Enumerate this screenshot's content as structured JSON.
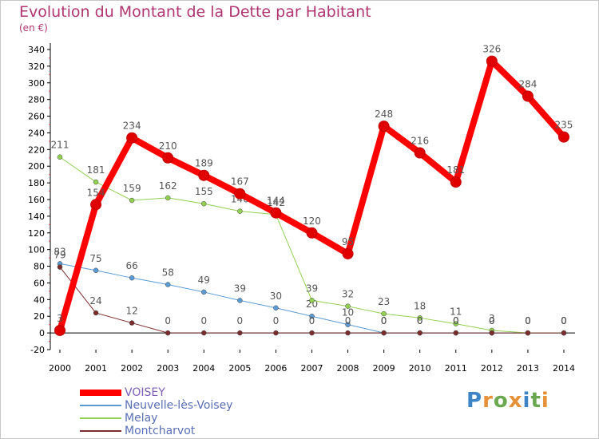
{
  "title": "Evolution du Montant de la Dette par Habitant",
  "unit": "(en €)",
  "logo": {
    "text": "Proxiti",
    "letters": [
      {
        "ch": "P",
        "color": "#3d85c6"
      },
      {
        "ch": "r",
        "color": "#e69138"
      },
      {
        "ch": "o",
        "color": "#6aa84f"
      },
      {
        "ch": "x",
        "color": "#e69138"
      },
      {
        "ch": "i",
        "color": "#3d85c6"
      },
      {
        "ch": "t",
        "color": "#6aa84f"
      },
      {
        "ch": "i",
        "color": "#e69138"
      }
    ]
  },
  "chart_data": {
    "type": "line",
    "title": "Evolution du Montant de la Dette par Habitant",
    "ylabel": "(en €)",
    "xlabel": "",
    "x": [
      "2000",
      "2001",
      "2002",
      "2003",
      "2004",
      "2005",
      "2006",
      "2007",
      "2008",
      "2009",
      "2010",
      "2011",
      "2012",
      "2013",
      "2014"
    ],
    "ylim": [
      -20,
      340
    ],
    "yticks": [
      -20,
      0,
      20,
      40,
      60,
      80,
      100,
      120,
      140,
      160,
      180,
      200,
      220,
      240,
      260,
      280,
      300,
      320,
      340
    ],
    "grid": false,
    "legend_position": "bottom-left",
    "series": [
      {
        "name": "VOISEY",
        "color": "#ff0000",
        "width": 8,
        "values": [
          3,
          154,
          234,
          210,
          189,
          167,
          144,
          120,
          95,
          248,
          216,
          181,
          326,
          284,
          235
        ],
        "labels": [
          "3",
          "154",
          "234",
          "210",
          "189",
          "167",
          "144",
          "120",
          "95",
          "248",
          "216",
          "181",
          "326",
          "284",
          "235"
        ]
      },
      {
        "name": "Neuvelle-lès-Voisey",
        "color": "#5b9bd5",
        "width": 1,
        "values": [
          83,
          75,
          66,
          58,
          49,
          39,
          30,
          20,
          10,
          0,
          0,
          0,
          0,
          0,
          0
        ],
        "labels": [
          "83",
          "75",
          "66",
          "58",
          "49",
          "39",
          "30",
          "20",
          "10",
          "0",
          "0",
          "0",
          "0",
          "0",
          "0"
        ]
      },
      {
        "name": "Melay",
        "color": "#92d050",
        "width": 1,
        "values": [
          211,
          181,
          159,
          162,
          155,
          146,
          142,
          39,
          32,
          23,
          18,
          11,
          3,
          0,
          0
        ],
        "labels": [
          "211",
          "181",
          "159",
          "162",
          "155",
          "146",
          "142",
          "39",
          "32",
          "23",
          "18",
          "11",
          "3",
          "0",
          "0"
        ]
      },
      {
        "name": "Montcharvot",
        "color": "#7b2c2c",
        "width": 1,
        "values": [
          79,
          24,
          12,
          0,
          0,
          0,
          0,
          0,
          0,
          0,
          0,
          0,
          0,
          0,
          0
        ],
        "labels": [
          "79",
          "24",
          "12",
          "0",
          "0",
          "0",
          "0",
          "0",
          "0",
          "0",
          "0",
          "0",
          "0",
          "0",
          "0"
        ]
      }
    ]
  }
}
